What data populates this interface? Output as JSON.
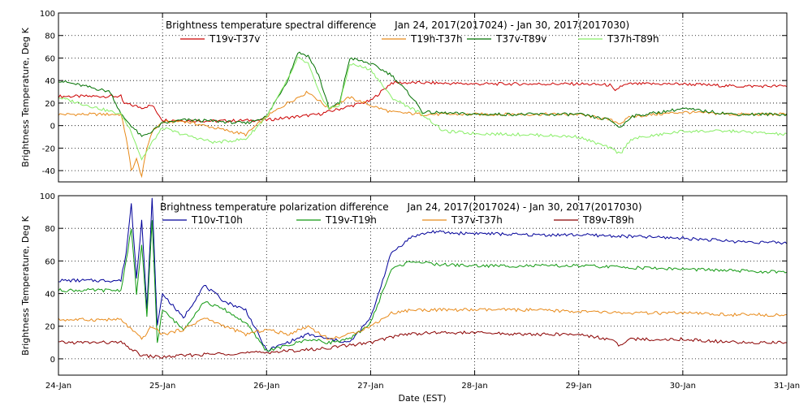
{
  "chart_data": [
    {
      "type": "line",
      "title": "Brightness temperature spectral difference      Jan 24, 2017(2017024) - Jan 30, 2017(2017030)",
      "ylabel": "Brightness Temperature, Deg K",
      "xlabel": "",
      "ylim": [
        -50,
        100
      ],
      "yticks": [
        "-40",
        "-20",
        "0",
        "20",
        "40",
        "60",
        "80",
        "100"
      ],
      "ytick_values": [
        -40,
        -20,
        0,
        20,
        40,
        60,
        80,
        100
      ],
      "xlim": [
        0,
        7
      ],
      "grid": true,
      "legend_position": "top",
      "series": [
        {
          "name": "T19v-T37v",
          "color": "#cc0000",
          "x": [
            0,
            0.6,
            0.62,
            0.8,
            0.9,
            1.0,
            1.5,
            2.0,
            2.5,
            3.0,
            3.2,
            3.5,
            4.0,
            4.5,
            5.0,
            5.3,
            5.35,
            5.4,
            5.5,
            6.0,
            6.5,
            7.0
          ],
          "y": [
            26,
            26,
            20,
            16,
            18,
            5,
            4,
            5,
            10,
            22,
            38,
            38,
            37,
            37,
            37,
            36,
            30,
            35,
            37,
            37,
            35,
            35
          ]
        },
        {
          "name": "T19h-T37h",
          "color": "#e88a1a",
          "x": [
            0,
            0.6,
            0.65,
            0.7,
            0.75,
            0.8,
            0.85,
            0.9,
            1.0,
            1.2,
            1.5,
            1.8,
            2.0,
            2.2,
            2.4,
            2.6,
            2.8,
            3.0,
            3.2,
            3.5,
            4.0,
            4.5,
            5.0,
            5.3,
            5.4,
            5.5,
            6.0,
            6.5,
            7.0
          ],
          "y": [
            10,
            10,
            -10,
            -40,
            -30,
            -45,
            -20,
            -5,
            3,
            4,
            -2,
            -8,
            8,
            20,
            30,
            15,
            25,
            18,
            12,
            10,
            10,
            10,
            10,
            5,
            2,
            8,
            12,
            10,
            10
          ]
        },
        {
          "name": "T37v-T89v",
          "color": "#007000",
          "x": [
            0,
            0.5,
            0.6,
            0.8,
            0.9,
            1.0,
            1.2,
            1.5,
            1.8,
            2.0,
            2.2,
            2.3,
            2.4,
            2.5,
            2.6,
            2.7,
            2.8,
            3.0,
            3.2,
            3.4,
            3.5,
            4.0,
            4.5,
            5.0,
            5.3,
            5.4,
            5.5,
            6.0,
            6.5,
            7.0
          ],
          "y": [
            40,
            30,
            10,
            -10,
            -5,
            2,
            5,
            4,
            2,
            8,
            40,
            65,
            62,
            45,
            15,
            20,
            60,
            55,
            45,
            25,
            12,
            10,
            10,
            10,
            5,
            -2,
            8,
            15,
            10,
            10
          ]
        },
        {
          "name": "T37h-T89h",
          "color": "#88ee66",
          "x": [
            0,
            0.6,
            0.7,
            0.8,
            0.9,
            1.0,
            1.2,
            1.5,
            1.8,
            2.0,
            2.2,
            2.3,
            2.4,
            2.5,
            2.6,
            2.7,
            2.8,
            3.0,
            3.2,
            3.5,
            3.7,
            4.0,
            4.5,
            5.0,
            5.3,
            5.4,
            5.5,
            6.0,
            6.5,
            7.0
          ],
          "y": [
            25,
            10,
            -5,
            -30,
            -15,
            -2,
            -8,
            -15,
            -12,
            8,
            40,
            60,
            55,
            30,
            15,
            18,
            55,
            50,
            25,
            10,
            -5,
            -7,
            -8,
            -10,
            -20,
            -25,
            -12,
            -5,
            -5,
            -8
          ]
        }
      ]
    },
    {
      "type": "line",
      "title": "Brightness temperature polarization difference      Jan 24, 2017(2017024) - Jan 30, 2017(2017030)",
      "ylabel": "Brightness Temperature, Deg K",
      "xlabel": "Date (EST)",
      "ylim": [
        -10,
        100
      ],
      "yticks": [
        "0",
        "20",
        "40",
        "60",
        "80",
        "100"
      ],
      "ytick_values": [
        0,
        20,
        40,
        60,
        80,
        100
      ],
      "categories": [
        "24-Jan",
        "25-Jan",
        "26-Jan",
        "27-Jan",
        "28-Jan",
        "29-Jan",
        "30-Jan",
        "31-Jan"
      ],
      "xlim": [
        0,
        7
      ],
      "grid": true,
      "legend_position": "top",
      "series": [
        {
          "name": "T10v-T10h",
          "color": "#000099",
          "x": [
            0,
            0.6,
            0.65,
            0.7,
            0.75,
            0.8,
            0.85,
            0.9,
            0.95,
            1.0,
            1.2,
            1.4,
            1.6,
            1.8,
            2.0,
            2.2,
            2.4,
            2.6,
            2.8,
            3.0,
            3.2,
            3.4,
            3.6,
            3.8,
            4.0,
            4.5,
            5.0,
            5.5,
            6.0,
            6.5,
            7.0
          ],
          "y": [
            48,
            48,
            65,
            95,
            50,
            85,
            30,
            98,
            20,
            40,
            25,
            45,
            35,
            30,
            5,
            10,
            15,
            12,
            10,
            25,
            65,
            75,
            78,
            77,
            77,
            76,
            76,
            75,
            74,
            72,
            71
          ]
        },
        {
          "name": "T19v-T19h",
          "color": "#119911",
          "x": [
            0,
            0.6,
            0.65,
            0.7,
            0.75,
            0.8,
            0.85,
            0.9,
            0.95,
            1.0,
            1.2,
            1.4,
            1.6,
            1.8,
            2.0,
            2.2,
            2.4,
            2.6,
            2.8,
            3.0,
            3.2,
            3.4,
            3.6,
            4.0,
            4.5,
            5.0,
            5.5,
            6.0,
            6.5,
            7.0
          ],
          "y": [
            42,
            42,
            60,
            80,
            40,
            70,
            25,
            85,
            10,
            30,
            18,
            35,
            30,
            22,
            5,
            8,
            12,
            10,
            12,
            22,
            55,
            60,
            58,
            57,
            57,
            57,
            56,
            55,
            54,
            53
          ]
        },
        {
          "name": "T37v-T37h",
          "color": "#e88a1a",
          "x": [
            0,
            0.6,
            0.7,
            0.8,
            0.9,
            1.0,
            1.2,
            1.4,
            1.6,
            1.8,
            2.0,
            2.2,
            2.4,
            2.6,
            2.8,
            3.0,
            3.2,
            3.4,
            3.6,
            4.0,
            4.5,
            5.0,
            5.5,
            6.0,
            6.5,
            7.0
          ],
          "y": [
            24,
            24,
            18,
            12,
            20,
            15,
            18,
            25,
            20,
            15,
            18,
            15,
            20,
            12,
            15,
            20,
            28,
            30,
            30,
            30,
            30,
            29,
            28,
            28,
            27,
            27
          ]
        },
        {
          "name": "T89v-T89h",
          "color": "#8b0000",
          "x": [
            0,
            0.6,
            0.8,
            1.0,
            1.2,
            1.5,
            2.0,
            2.5,
            3.0,
            3.3,
            3.6,
            4.0,
            4.5,
            5.0,
            5.3,
            5.4,
            5.5,
            6.0,
            6.5,
            7.0
          ],
          "y": [
            10,
            10,
            2,
            1,
            2,
            3,
            4,
            6,
            10,
            15,
            16,
            16,
            15,
            15,
            12,
            8,
            12,
            12,
            10,
            10
          ]
        }
      ]
    }
  ]
}
